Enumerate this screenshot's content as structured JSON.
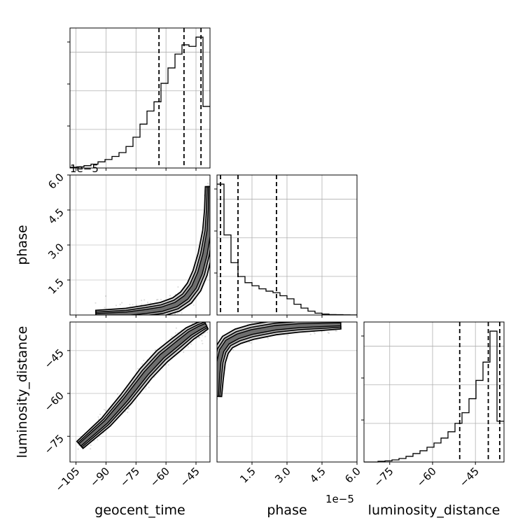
{
  "chart_data": {
    "type": "corner",
    "parameters": [
      "geocent_time",
      "phase",
      "luminosity_distance"
    ],
    "labels": {
      "geocent_time": "geocent_time",
      "phase": "phase",
      "luminosity_distance": "luminosity_distance"
    },
    "scale_note": "1e−5",
    "ranges": {
      "geocent_time": [
        -108,
        -38
      ],
      "phase": [
        0,
        6.0
      ],
      "luminosity_distance": [
        -84,
        -35
      ]
    },
    "ticks": {
      "geocent_time": [
        -105,
        -90,
        -75,
        -60,
        -45
      ],
      "phase": [
        1.5,
        3.0,
        4.5,
        6.0
      ],
      "luminosity_distance": [
        -75,
        -60,
        -45
      ]
    },
    "tick_labels": {
      "geocent_time": [
        "−105",
        "−90",
        "−75",
        "−60",
        "−45"
      ],
      "phase": [
        "1.5",
        "3.0",
        "4.5",
        "6.0"
      ],
      "luminosity_distance": [
        "−75",
        "−60",
        "−45"
      ]
    },
    "quantiles": {
      "geocent_time": [
        -63.5,
        -51,
        -42.5
      ],
      "phase": [
        0.15,
        0.9,
        2.55
      ],
      "luminosity_distance": [
        -50.5,
        -40.5,
        -36.5
      ]
    },
    "histograms": {
      "geocent_time": {
        "edges": [
          -108,
          -104.5,
          -101,
          -97.5,
          -94,
          -90.5,
          -87,
          -83.5,
          -80,
          -76.5,
          -73,
          -69.5,
          -66,
          -62.5,
          -59,
          -55.5,
          -52,
          -48.5,
          -45,
          -41.5,
          -38
        ],
        "counts": [
          0.5,
          0.8,
          1.5,
          2.5,
          4,
          5.5,
          7.5,
          10,
          14,
          20,
          28.5,
          37,
          43,
          55,
          65,
          74,
          80,
          79,
          85,
          40
        ]
      },
      "phase": {
        "edges": [
          0,
          0.3,
          0.6,
          0.9,
          1.2,
          1.5,
          1.8,
          2.1,
          2.4,
          2.7,
          3.0,
          3.3,
          3.6,
          3.9,
          4.2,
          4.5,
          4.8,
          5.1,
          5.4,
          5.7,
          6.0
        ],
        "counts": [
          85,
          52,
          34,
          25,
          21,
          19,
          17,
          15.5,
          14.5,
          12.5,
          10.5,
          7,
          4.5,
          2.5,
          1.2,
          0.6,
          0.3,
          0.2,
          0.1,
          0.05
        ]
      },
      "luminosity_distance": {
        "edges": [
          -84,
          -81.55,
          -79.1,
          -76.65,
          -74.2,
          -71.75,
          -69.3,
          -66.85,
          -64.4,
          -61.95,
          -59.5,
          -57.05,
          -54.6,
          -52.15,
          -49.7,
          -47.25,
          -44.8,
          -42.35,
          -39.9,
          -37.45,
          -35
        ],
        "counts": [
          0,
          0,
          0.5,
          0.8,
          1.5,
          2.5,
          4,
          6,
          8,
          10.5,
          13.5,
          17,
          21.5,
          27.5,
          35,
          45,
          58,
          71,
          93,
          29
        ]
      }
    },
    "pairs": [
      {
        "x": "geocent_time",
        "y": "phase",
        "ridge": [
          [
            -95,
            0.0
          ],
          [
            -80,
            0.05
          ],
          [
            -70,
            0.15
          ],
          [
            -62,
            0.25
          ],
          [
            -55,
            0.45
          ],
          [
            -50,
            0.75
          ],
          [
            -46,
            1.2
          ],
          [
            -43,
            1.8
          ],
          [
            -40.5,
            2.6
          ],
          [
            -38.5,
            3.6
          ],
          [
            -38,
            4.5
          ],
          [
            -38,
            5.5
          ]
        ],
        "spread": 0.2
      },
      {
        "x": "geocent_time",
        "y": "luminosity_distance",
        "ridge": [
          [
            -103,
            -78
          ],
          [
            -90,
            -70
          ],
          [
            -80,
            -62
          ],
          [
            -70,
            -53
          ],
          [
            -62,
            -47
          ],
          [
            -55,
            -43
          ],
          [
            -48,
            -39
          ],
          [
            -43,
            -37
          ],
          [
            -40,
            -36
          ]
        ],
        "spread": 1.6
      },
      {
        "x": "phase",
        "y": "luminosity_distance",
        "ridge": [
          [
            0.0,
            -61
          ],
          [
            0.03,
            -55
          ],
          [
            0.08,
            -49
          ],
          [
            0.2,
            -45
          ],
          [
            0.45,
            -42
          ],
          [
            0.9,
            -40
          ],
          [
            1.5,
            -38.5
          ],
          [
            2.5,
            -37
          ],
          [
            3.5,
            -36.3
          ],
          [
            4.5,
            -36
          ],
          [
            5.3,
            -35.8
          ]
        ],
        "spread": 0.7
      }
    ],
    "grid": true
  }
}
